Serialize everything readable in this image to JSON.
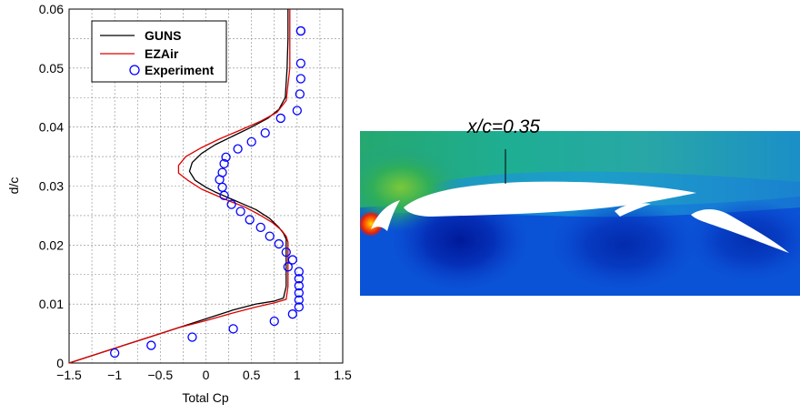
{
  "chart_data": {
    "type": "line",
    "xlabel": "Total Cp",
    "ylabel": "d/c",
    "xlim": [
      -1.5,
      1.5
    ],
    "ylim": [
      0,
      0.06
    ],
    "xticks": [
      "−1.5",
      "−1",
      "−0.5",
      "0",
      "0.5",
      "1",
      "1.5"
    ],
    "yticks": [
      "0",
      "0.01",
      "0.02",
      "0.03",
      "0.04",
      "0.05",
      "0.06"
    ],
    "grid": true,
    "legend": "top-left",
    "series": [
      {
        "name": "GUNS",
        "style": "line",
        "color": "#000000",
        "x": [
          -1.5,
          -1.2,
          -0.9,
          -0.6,
          -0.3,
          0.0,
          0.3,
          0.55,
          0.75,
          0.85,
          0.88,
          0.88,
          0.88,
          0.88,
          0.88,
          0.85,
          0.8,
          0.7,
          0.55,
          0.4,
          0.25,
          0.1,
          0.0,
          -0.12,
          -0.18,
          -0.15,
          -0.05,
          0.1,
          0.3,
          0.5,
          0.68,
          0.8,
          0.87,
          0.89,
          0.9,
          0.9
        ],
        "y": [
          0.0,
          0.0015,
          0.003,
          0.0045,
          0.006,
          0.0075,
          0.009,
          0.01,
          0.0105,
          0.011,
          0.013,
          0.016,
          0.019,
          0.02,
          0.021,
          0.022,
          0.023,
          0.0245,
          0.026,
          0.027,
          0.028,
          0.029,
          0.0298,
          0.031,
          0.0325,
          0.034,
          0.0355,
          0.037,
          0.0385,
          0.04,
          0.0415,
          0.043,
          0.045,
          0.05,
          0.055,
          0.06
        ]
      },
      {
        "name": "EZAir",
        "style": "line",
        "color": "#dd0000",
        "x": [
          -1.5,
          -1.2,
          -0.9,
          -0.6,
          -0.3,
          0.0,
          0.3,
          0.55,
          0.75,
          0.88,
          0.9,
          0.9,
          0.9,
          0.9,
          0.88,
          0.83,
          0.73,
          0.58,
          0.42,
          0.25,
          0.1,
          -0.05,
          -0.2,
          -0.3,
          -0.3,
          -0.22,
          -0.05,
          0.15,
          0.38,
          0.6,
          0.78,
          0.88,
          0.92,
          0.92,
          0.92
        ],
        "y": [
          0.0,
          0.0015,
          0.003,
          0.0045,
          0.006,
          0.0072,
          0.0085,
          0.0095,
          0.0102,
          0.0108,
          0.013,
          0.016,
          0.019,
          0.0205,
          0.0215,
          0.0225,
          0.0238,
          0.0252,
          0.0265,
          0.0275,
          0.0285,
          0.0295,
          0.031,
          0.0322,
          0.0335,
          0.035,
          0.0365,
          0.038,
          0.0395,
          0.041,
          0.0425,
          0.0445,
          0.05,
          0.055,
          0.06
        ]
      },
      {
        "name": "Experiment",
        "style": "markers",
        "color": "#0000ff",
        "x": [
          -1.0,
          -0.6,
          -0.15,
          0.3,
          0.75,
          0.95,
          1.02,
          1.02,
          1.02,
          1.02,
          1.02,
          1.02,
          0.9,
          0.95,
          0.88,
          0.8,
          0.7,
          0.6,
          0.48,
          0.38,
          0.28,
          0.2,
          0.18,
          0.15,
          0.18,
          0.2,
          0.22,
          0.35,
          0.5,
          0.65,
          0.82,
          1.0,
          1.03,
          1.04,
          1.04,
          1.04,
          1.04
        ],
        "y": [
          0.0017,
          0.003,
          0.0044,
          0.0058,
          0.0071,
          0.0083,
          0.0095,
          0.0107,
          0.0119,
          0.0131,
          0.0143,
          0.0155,
          0.0163,
          0.0175,
          0.0188,
          0.0202,
          0.0215,
          0.023,
          0.0243,
          0.0257,
          0.0269,
          0.0284,
          0.0298,
          0.0311,
          0.0323,
          0.0338,
          0.0349,
          0.0363,
          0.0375,
          0.039,
          0.0415,
          0.0428,
          0.0456,
          0.0482,
          0.0508,
          0.0563,
          0.0563
        ]
      }
    ]
  },
  "contour": {
    "annotation": "x/c=0.35",
    "colors": {
      "low": "#0a2fb8",
      "mid_low": "#0a52d6",
      "mid": "#1a8ad8",
      "teal": "#3fb0a8",
      "green": "#2fae5a",
      "high": "#e04010",
      "white": "#ffffff"
    }
  }
}
